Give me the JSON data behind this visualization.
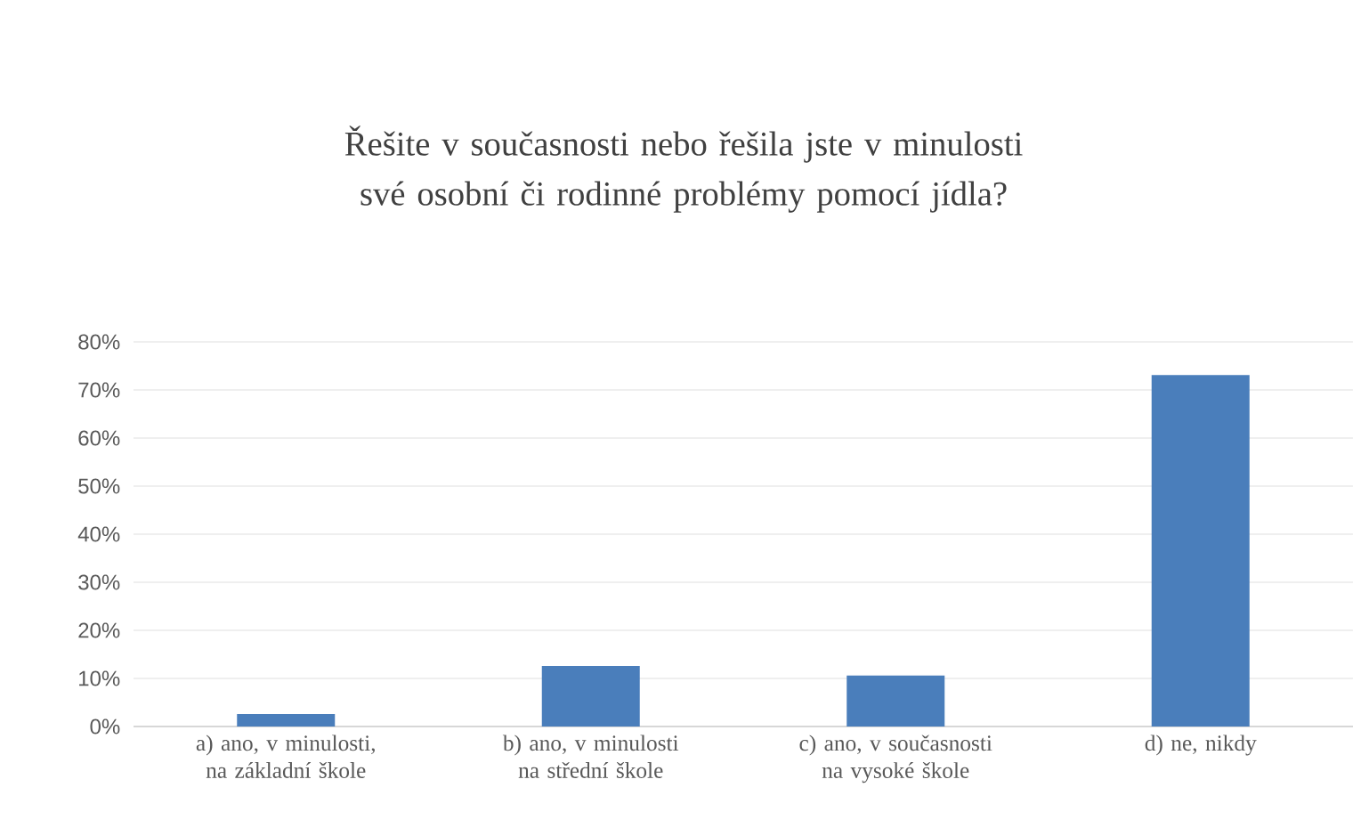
{
  "chart_data": {
    "type": "bar",
    "title": "Řešite v současnosti nebo řešila jste v minulosti své osobní či rodinné problémy pomocí jídla?",
    "categories": [
      "a) ano, v minulosti, na základní škole",
      "b) ano, v minulosti na střední škole",
      "c) ano, v současnosti na vysoké škole",
      "d) ne, nikdy"
    ],
    "values": [
      2.6,
      12.6,
      10.6,
      73.1
    ],
    "color": "#4a7ebb",
    "ylim": [
      0,
      80
    ],
    "yticks": [
      {
        "value": 0,
        "label": "0%"
      },
      {
        "value": 10,
        "label": "10%"
      },
      {
        "value": 20,
        "label": "20%"
      },
      {
        "value": 30,
        "label": "30%"
      },
      {
        "value": 40,
        "label": "40%"
      },
      {
        "value": 50,
        "label": "50%"
      },
      {
        "value": 60,
        "label": "60%"
      },
      {
        "value": 70,
        "label": "70%"
      },
      {
        "value": 80,
        "label": "80%"
      }
    ],
    "grid": "y"
  }
}
